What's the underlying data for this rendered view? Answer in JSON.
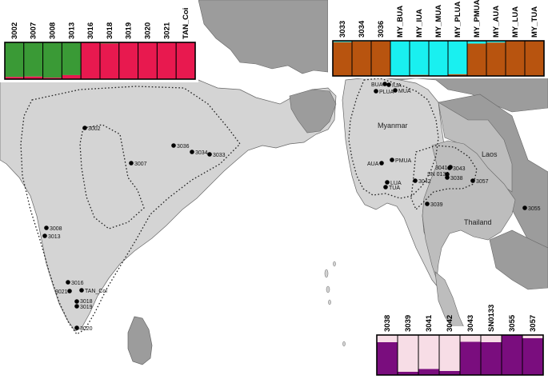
{
  "countries": [
    "Myanmar",
    "Laos",
    "Thailand"
  ],
  "colors": {
    "sea": "#ffffff",
    "land_focus": "#d4d4d4",
    "land_other": "#9c9c9c",
    "land_light": "#bdbdbd",
    "green": "#3a9a36",
    "red": "#e8194f",
    "orange": "#b8540f",
    "cyan": "#19f0f0",
    "purple": "#7a0d7e",
    "pink": "#f7dde6",
    "point": "#000000"
  },
  "sites": [
    {
      "label": "3002"
    },
    {
      "label": "3036"
    },
    {
      "label": "3034"
    },
    {
      "label": "3033"
    },
    {
      "label": "3007"
    },
    {
      "label": "3008"
    },
    {
      "label": "3013"
    },
    {
      "label": "3016"
    },
    {
      "label": "3021"
    },
    {
      "label": "TAN_Coi"
    },
    {
      "label": "3018"
    },
    {
      "label": "3019"
    },
    {
      "label": "3020"
    },
    {
      "label": "BUA"
    },
    {
      "label": "IUA"
    },
    {
      "label": "PLUA"
    },
    {
      "label": "MUA"
    },
    {
      "label": "AUA"
    },
    {
      "label": "PMUA"
    },
    {
      "label": "LUA"
    },
    {
      "label": "TUA"
    },
    {
      "label": "3041"
    },
    {
      "label": "3043"
    },
    {
      "label": "SN 0133"
    },
    {
      "label": "3038"
    },
    {
      "label": "3042"
    },
    {
      "label": "3057"
    },
    {
      "label": "3039"
    },
    {
      "label": "3055"
    }
  ],
  "charts": [
    {
      "name": "india",
      "columns": [
        {
          "label": "3002",
          "bottom": 0.06,
          "top_color": "green",
          "bottom_color": "red"
        },
        {
          "label": "3007",
          "bottom": 0.07,
          "top_color": "green",
          "bottom_color": "red"
        },
        {
          "label": "3008",
          "bottom": 0.04,
          "top_color": "green",
          "bottom_color": "red"
        },
        {
          "label": "3013",
          "bottom": 0.11,
          "top_color": "green",
          "bottom_color": "red"
        },
        {
          "label": "3016",
          "bottom": 1.0,
          "top_color": "green",
          "bottom_color": "red"
        },
        {
          "label": "3018",
          "bottom": 0.97,
          "top_color": "green",
          "bottom_color": "red"
        },
        {
          "label": "3019",
          "bottom": 1.0,
          "top_color": "green",
          "bottom_color": "red"
        },
        {
          "label": "3020",
          "bottom": 1.0,
          "top_color": "green",
          "bottom_color": "red"
        },
        {
          "label": "3021",
          "bottom": 1.0,
          "top_color": "green",
          "bottom_color": "red"
        },
        {
          "label": "TAN_Coi",
          "bottom": 1.0,
          "top_color": "green",
          "bottom_color": "red"
        }
      ]
    },
    {
      "name": "myanmar",
      "columns": [
        {
          "label": "3033",
          "bottom": 0.96,
          "top_color": "cyan",
          "bottom_color": "orange"
        },
        {
          "label": "3034",
          "bottom": 0.98,
          "top_color": "cyan",
          "bottom_color": "orange"
        },
        {
          "label": "3036",
          "bottom": 1.0,
          "top_color": "cyan",
          "bottom_color": "orange"
        },
        {
          "label": "MY_BUA",
          "bottom": 0.0,
          "top_color": "cyan",
          "bottom_color": "orange"
        },
        {
          "label": "MY_IUA",
          "bottom": 0.03,
          "top_color": "cyan",
          "bottom_color": "orange"
        },
        {
          "label": "MY_MUA",
          "bottom": 0.0,
          "top_color": "cyan",
          "bottom_color": "orange"
        },
        {
          "label": "MY_PLUA",
          "bottom": 0.05,
          "top_color": "cyan",
          "bottom_color": "orange"
        },
        {
          "label": "MY_PMUA",
          "bottom": 0.92,
          "top_color": "cyan",
          "bottom_color": "orange"
        },
        {
          "label": "MY_AUA",
          "bottom": 0.95,
          "top_color": "cyan",
          "bottom_color": "orange"
        },
        {
          "label": "MY_LUA",
          "bottom": 1.0,
          "top_color": "cyan",
          "bottom_color": "orange"
        },
        {
          "label": "MY_TUA",
          "bottom": 1.0,
          "top_color": "cyan",
          "bottom_color": "orange"
        }
      ]
    },
    {
      "name": "thailand",
      "columns": [
        {
          "label": "3038",
          "bottom": 0.82,
          "top_color": "pink",
          "bottom_color": "purple"
        },
        {
          "label": "3039",
          "bottom": 0.08,
          "top_color": "pink",
          "bottom_color": "purple"
        },
        {
          "label": "3041",
          "bottom": 0.15,
          "top_color": "pink",
          "bottom_color": "purple"
        },
        {
          "label": "3042",
          "bottom": 0.1,
          "top_color": "pink",
          "bottom_color": "purple"
        },
        {
          "label": "3043",
          "bottom": 0.83,
          "top_color": "pink",
          "bottom_color": "purple"
        },
        {
          "label": "SN0133",
          "bottom": 0.82,
          "top_color": "pink",
          "bottom_color": "purple"
        },
        {
          "label": "3055",
          "bottom": 1.0,
          "top_color": "pink",
          "bottom_color": "purple"
        },
        {
          "label": "3057",
          "bottom": 0.92,
          "top_color": "pink",
          "bottom_color": "purple"
        }
      ]
    }
  ]
}
